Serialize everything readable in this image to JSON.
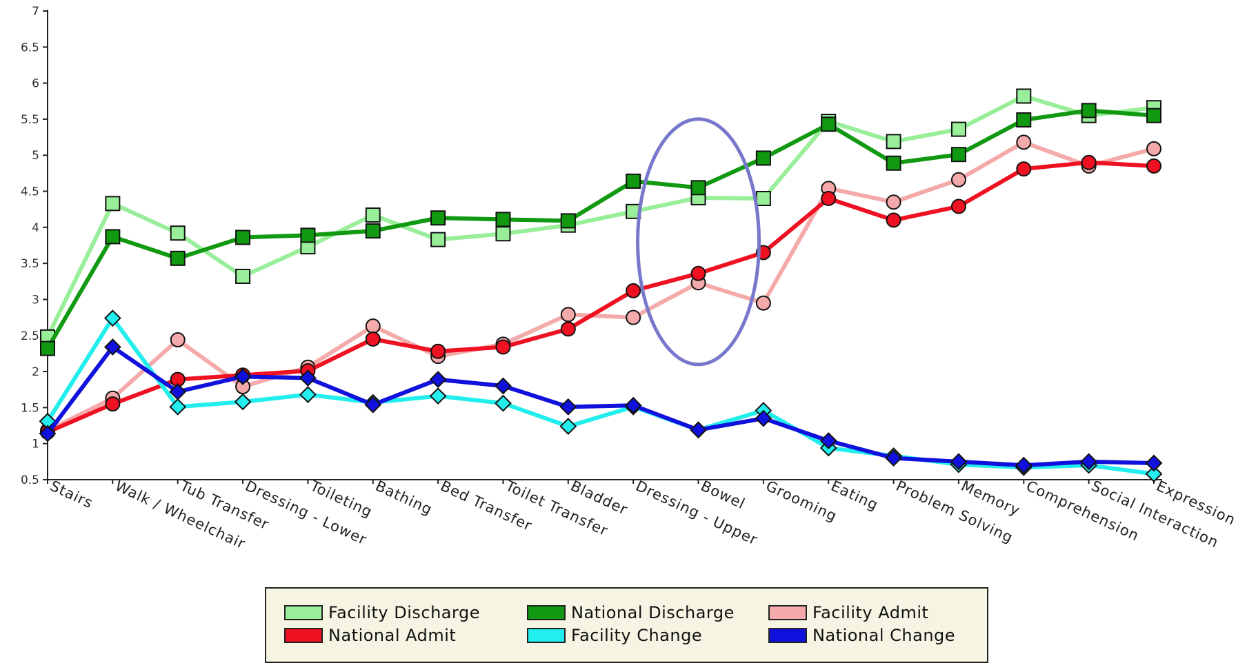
{
  "chart_data": {
    "type": "line",
    "title": "",
    "xlabel": "",
    "ylabel": "",
    "ylim": [
      0.5,
      7
    ],
    "yticks": [
      "0.5",
      "1",
      "1.5",
      "2",
      "2.5",
      "3",
      "3.5",
      "4",
      "4.5",
      "5",
      "5.5",
      "6",
      "6.5",
      "7"
    ],
    "grid": false,
    "legend_position": "bottom",
    "highlight": {
      "type": "ellipse",
      "category": "Bowel",
      "color": "#7777cc"
    },
    "categories": [
      "Stairs",
      "Walk / Wheelchair",
      "Tub Transfer",
      "Dressing - Lower",
      "Toileting",
      "Bathing",
      "Bed Transfer",
      "Toilet Transfer",
      "Bladder",
      "Dressing - Upper",
      "Bowel",
      "Grooming",
      "Eating",
      "Problem Solving",
      "Memory",
      "Comprehension",
      "Social Interaction",
      "Expression"
    ],
    "series": [
      {
        "name": "Facility Discharge",
        "color": "#99ee99",
        "marker": "square",
        "values": [
          2.48,
          4.33,
          3.92,
          3.32,
          3.73,
          4.17,
          3.83,
          3.91,
          4.03,
          4.22,
          4.41,
          4.4,
          5.47,
          5.19,
          5.36,
          5.82,
          5.55,
          5.66
        ]
      },
      {
        "name": "National Discharge",
        "color": "#119911",
        "marker": "square",
        "values": [
          2.32,
          3.87,
          3.57,
          3.86,
          3.89,
          3.95,
          4.13,
          4.11,
          4.09,
          4.64,
          4.55,
          4.96,
          5.43,
          4.89,
          5.01,
          5.49,
          5.62,
          5.55
        ]
      },
      {
        "name": "Facility Admit",
        "color": "#f4aaaa",
        "marker": "circle",
        "values": [
          1.18,
          1.63,
          2.44,
          1.79,
          2.06,
          2.63,
          2.21,
          2.38,
          2.79,
          2.75,
          3.23,
          2.95,
          4.54,
          4.35,
          4.66,
          5.18,
          4.85,
          5.09
        ]
      },
      {
        "name": "National Admit",
        "color": "#ee1122",
        "marker": "circle",
        "values": [
          1.16,
          1.55,
          1.89,
          1.95,
          2.01,
          2.45,
          2.28,
          2.34,
          2.59,
          3.12,
          3.36,
          3.65,
          4.4,
          4.1,
          4.29,
          4.81,
          4.9,
          4.85
        ]
      },
      {
        "name": "Facility Change",
        "color": "#22eeee",
        "marker": "diamond",
        "values": [
          1.31,
          2.74,
          1.51,
          1.58,
          1.68,
          1.57,
          1.66,
          1.56,
          1.24,
          1.51,
          1.19,
          1.46,
          0.94,
          0.83,
          0.71,
          0.67,
          0.7,
          0.58
        ]
      },
      {
        "name": "National Change",
        "color": "#1111dd",
        "marker": "diamond",
        "values": [
          1.14,
          2.34,
          1.72,
          1.93,
          1.91,
          1.54,
          1.89,
          1.8,
          1.51,
          1.53,
          1.19,
          1.35,
          1.04,
          0.8,
          0.75,
          0.7,
          0.75,
          0.73
        ]
      }
    ],
    "legend_order": [
      "Facility Discharge",
      "National Discharge",
      "Facility Admit",
      "National Admit",
      "Facility Change",
      "National Change"
    ]
  }
}
